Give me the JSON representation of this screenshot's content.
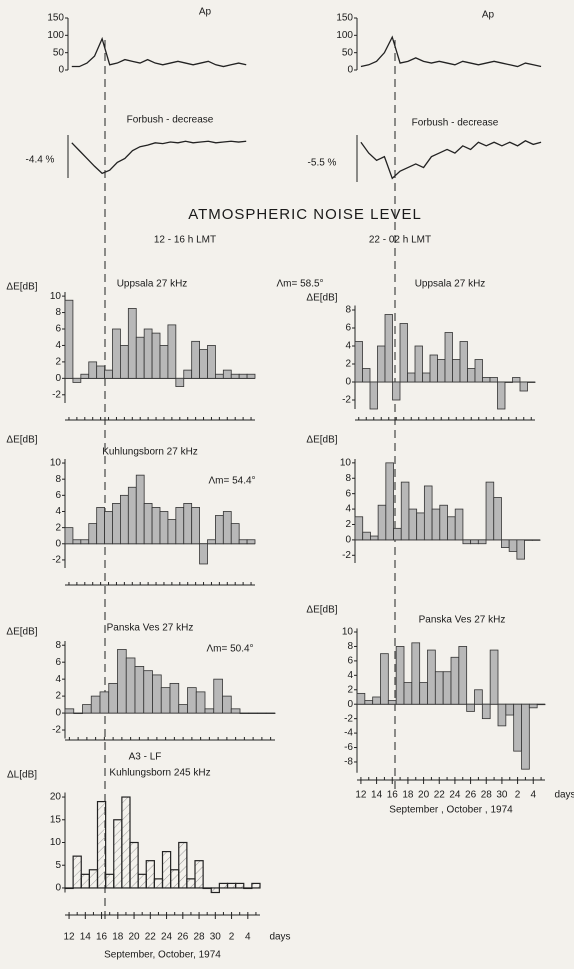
{
  "heading": "ATMOSPHERIC NOISE LEVEL",
  "left_label": "12 - 16 h LMT",
  "right_label": "22 - 02 h LMT",
  "chart_data": [
    {
      "type": "line",
      "title": "Ap",
      "color": "#222222",
      "ylim": [
        0,
        150
      ],
      "yticks": [
        0,
        50,
        100,
        150
      ],
      "xlim": [
        11.5,
        35.5
      ],
      "x": [
        12,
        13,
        14,
        15,
        16,
        17,
        18,
        19,
        20,
        21,
        22,
        23,
        24,
        25,
        26,
        27,
        28,
        29,
        30,
        31,
        32,
        33,
        34,
        35
      ],
      "values": [
        10,
        10,
        20,
        40,
        90,
        15,
        20,
        30,
        25,
        20,
        30,
        20,
        15,
        20,
        25,
        20,
        15,
        20,
        25,
        15,
        10,
        15,
        20,
        15
      ]
    },
    {
      "type": "line",
      "title": "Ap",
      "color": "#222222",
      "ylim": [
        0,
        150
      ],
      "yticks": [
        0,
        50,
        100,
        150
      ],
      "xlim": [
        11.5,
        35.5
      ],
      "x": [
        12,
        13,
        14,
        15,
        16,
        17,
        18,
        19,
        20,
        21,
        22,
        23,
        24,
        25,
        26,
        27,
        28,
        29,
        30,
        31,
        32,
        33,
        34,
        35
      ],
      "values": [
        10,
        15,
        25,
        50,
        95,
        20,
        25,
        35,
        25,
        20,
        25,
        20,
        15,
        25,
        20,
        15,
        20,
        25,
        20,
        15,
        10,
        20,
        15,
        10
      ]
    },
    {
      "type": "line",
      "title": "Forbush - decrease",
      "annotation": "-4.4 %",
      "color": "#222222",
      "ylim": [
        -5,
        0.5
      ],
      "xlim": [
        11.5,
        35.5
      ],
      "x": [
        12,
        13,
        14,
        15,
        16,
        17,
        18,
        19,
        20,
        21,
        22,
        23,
        24,
        25,
        26,
        27,
        28,
        29,
        30,
        31,
        32,
        33,
        34,
        35
      ],
      "values": [
        -0.5,
        -1.5,
        -2.5,
        -3.5,
        -4.4,
        -4,
        -3,
        -2.5,
        -1.5,
        -1,
        -0.8,
        -0.5,
        -0.6,
        -0.4,
        -0.5,
        -0.3,
        -0.5,
        -0.4,
        -0.3,
        -0.5,
        -0.4,
        -0.3,
        -0.4,
        -0.3
      ]
    },
    {
      "type": "line",
      "title": "Forbush - decrease",
      "annotation": "-5.5 %",
      "color": "#222222",
      "ylim": [
        -6,
        0.5
      ],
      "xlim": [
        11.5,
        35.5
      ],
      "x": [
        12,
        13,
        14,
        15,
        16,
        17,
        18,
        19,
        20,
        21,
        22,
        23,
        24,
        25,
        26,
        27,
        28,
        29,
        30,
        31,
        32,
        33,
        34,
        35
      ],
      "values": [
        -0.5,
        -2,
        -3,
        -2.5,
        -5.5,
        -4.5,
        -4,
        -3.5,
        -4,
        -2.5,
        -2,
        -1.5,
        -2,
        -1,
        -1.5,
        -0.5,
        -1,
        -0.5,
        -1,
        -0.5,
        -1,
        -0.3,
        -0.8,
        -0.5
      ]
    },
    {
      "type": "bar",
      "title": "Uppsala 27 kHz",
      "ylabel": "ΔE[dB]",
      "annotation": "Λm= 58.5°",
      "color": "#b8b8b8",
      "ylim": [
        -3,
        10.5
      ],
      "yticks": [
        -2,
        0,
        2,
        4,
        6,
        8,
        10
      ],
      "xlim": [
        11.5,
        35.5
      ],
      "x": [
        12,
        13,
        14,
        15,
        16,
        17,
        18,
        19,
        20,
        21,
        22,
        23,
        24,
        25,
        26,
        27,
        28,
        29,
        30,
        31,
        32,
        33,
        34,
        35
      ],
      "values": [
        9.5,
        -0.5,
        0.5,
        2,
        1.5,
        1,
        6,
        4,
        8.5,
        5,
        6,
        5.5,
        4,
        6.5,
        -1,
        1,
        4.5,
        3.5,
        4,
        0.5,
        1,
        0.5,
        0.5,
        0.5
      ]
    },
    {
      "type": "bar",
      "title": "Uppsala 27 kHz",
      "ylabel": "ΔE[dB]",
      "color": "#b8b8b8",
      "ylim": [
        -3,
        8.5
      ],
      "yticks": [
        -2,
        0,
        2,
        4,
        6,
        8
      ],
      "xlim": [
        11.5,
        35.5
      ],
      "x": [
        12,
        13,
        14,
        15,
        16,
        17,
        18,
        19,
        20,
        21,
        22,
        23,
        24,
        25,
        26,
        27,
        28,
        29,
        30,
        31,
        32,
        33,
        34,
        35
      ],
      "values": [
        4.5,
        1.5,
        -3,
        4,
        7.5,
        -2,
        6.5,
        1,
        4,
        1,
        3,
        2.5,
        5.5,
        2.5,
        4.5,
        1.5,
        2.5,
        0.5,
        0.5,
        -3,
        0,
        0.5,
        -1,
        0
      ]
    },
    {
      "type": "bar",
      "title": "Kuhlungsborn 27 kHz",
      "ylabel": "ΔE[dB]",
      "annotation": "Λm= 54.4°",
      "color": "#b8b8b8",
      "ylim": [
        -3,
        10.5
      ],
      "yticks": [
        -2,
        0,
        2,
        4,
        6,
        8,
        10
      ],
      "xlim": [
        11.5,
        35.5
      ],
      "x": [
        12,
        13,
        14,
        15,
        16,
        17,
        18,
        19,
        20,
        21,
        22,
        23,
        24,
        25,
        26,
        27,
        28,
        29,
        30,
        31,
        32,
        33,
        34,
        35
      ],
      "values": [
        2,
        0.5,
        0.5,
        2.5,
        4.5,
        4,
        5,
        6,
        7,
        8.5,
        5,
        4.5,
        4,
        3,
        4.5,
        5,
        4.5,
        -2.5,
        0.5,
        3.5,
        4,
        2.5,
        0.5,
        0.5
      ]
    },
    {
      "type": "bar",
      "ylabel": "ΔE[dB]",
      "color": "#b8b8b8",
      "ylim": [
        -3,
        10.5
      ],
      "yticks": [
        -2,
        0,
        2,
        4,
        6,
        8,
        10
      ],
      "xlim": [
        11.5,
        35.5
      ],
      "x": [
        12,
        13,
        14,
        15,
        16,
        17,
        18,
        19,
        20,
        21,
        22,
        23,
        24,
        25,
        26,
        27,
        28,
        29,
        30,
        31,
        32,
        33,
        34,
        35
      ],
      "values": [
        3,
        1,
        0.5,
        4.5,
        10,
        1.5,
        7.5,
        4,
        3.5,
        7,
        4,
        4.5,
        3,
        4,
        -0.5,
        -0.5,
        -0.5,
        7.5,
        5.5,
        -1,
        -1.5,
        -2.5,
        0,
        0
      ]
    },
    {
      "type": "bar",
      "title": "Panska Ves 27 kHz",
      "ylabel": "ΔE[dB]",
      "annotation": "Λm= 50.4°",
      "color": "#b8b8b8",
      "ylim": [
        -3,
        8.5
      ],
      "yticks": [
        -2,
        0,
        2,
        4,
        6,
        8
      ],
      "xlim": [
        11.5,
        35.5
      ],
      "x": [
        12,
        13,
        14,
        15,
        16,
        17,
        18,
        19,
        20,
        21,
        22,
        23,
        24,
        25,
        26,
        27,
        28,
        29,
        30,
        31,
        32,
        33,
        34,
        35
      ],
      "values": [
        0.5,
        0,
        1,
        2,
        2.5,
        3.5,
        7.5,
        6.5,
        5.5,
        5,
        4.5,
        3,
        3.5,
        1,
        3,
        2.5,
        0.5,
        4,
        2,
        0.5,
        0,
        0,
        0,
        0
      ]
    },
    {
      "type": "bar",
      "title": "Panska Ves 27 kHz",
      "ylabel": "ΔE[dB]",
      "color": "#b8b8b8",
      "ylim": [
        -9.5,
        10.5
      ],
      "yticks": [
        -8,
        -6,
        -4,
        -2,
        0,
        2,
        4,
        6,
        8,
        10
      ],
      "xlim": [
        11.5,
        35.5
      ],
      "x": [
        12,
        13,
        14,
        15,
        16,
        17,
        18,
        19,
        20,
        21,
        22,
        23,
        24,
        25,
        26,
        27,
        28,
        29,
        30,
        31,
        32,
        33,
        34,
        35
      ],
      "values": [
        1.5,
        0.5,
        1,
        7,
        0.5,
        8,
        3,
        8.5,
        3,
        7.5,
        4.5,
        4.5,
        6.5,
        8,
        -1,
        2,
        -2,
        7.5,
        -3,
        -1.5,
        -6.5,
        -9,
        -0.5,
        0
      ],
      "xticks": [
        12,
        14,
        16,
        18,
        20,
        22,
        24,
        26,
        28,
        30,
        {
          "value": 32,
          "label": "2"
        },
        {
          "value": 34,
          "label": "4"
        }
      ],
      "xlabel": "days",
      "date_label": "September , October , 1974"
    },
    {
      "type": "step",
      "subtitle": "A3 - LF",
      "title": "Kuhlungsborn 245 kHz",
      "ylabel": "ΔL[dB]",
      "color": "#222222",
      "ylim": [
        -1,
        21
      ],
      "yticks": [
        0,
        5,
        10,
        15,
        20
      ],
      "xlim": [
        11.5,
        35.5
      ],
      "x": [
        12,
        13,
        14,
        15,
        16,
        17,
        18,
        19,
        20,
        21,
        22,
        23,
        24,
        25,
        26,
        27,
        28,
        29,
        30,
        31,
        32,
        33,
        34,
        35
      ],
      "values": [
        0,
        7,
        3,
        4,
        19,
        3,
        15,
        20,
        10,
        3,
        6,
        2,
        8,
        4,
        10,
        2,
        6,
        0,
        -1,
        1,
        1,
        1,
        0,
        1
      ],
      "xticks": [
        12,
        14,
        16,
        18,
        20,
        22,
        24,
        26,
        28,
        30,
        {
          "value": 32,
          "label": "2"
        },
        {
          "value": 34,
          "label": "4"
        }
      ],
      "xlabel": "days",
      "date_label": "September, October, 1974"
    }
  ]
}
